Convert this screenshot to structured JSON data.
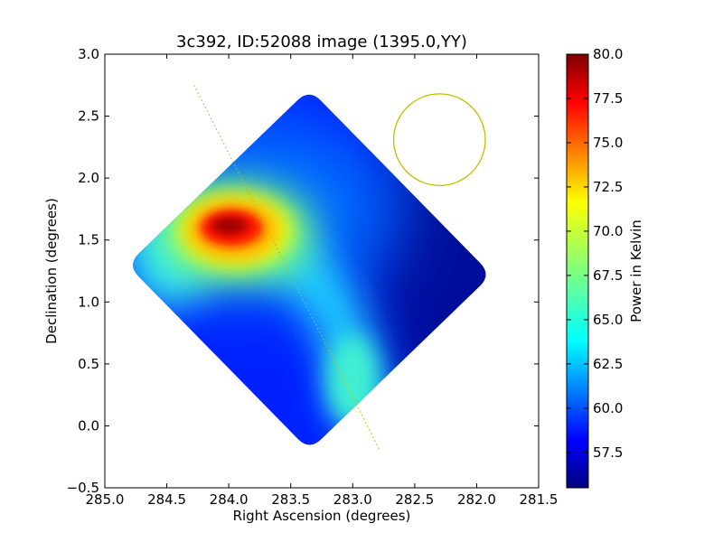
{
  "chart_data": {
    "type": "heatmap",
    "title": "3c392, ID:52088 image (1395.0,YY)",
    "xlabel": "Right Ascension (degrees)",
    "ylabel": "Declination (degrees)",
    "xlim": [
      285.0,
      281.5
    ],
    "ylim": [
      -0.5,
      3.0
    ],
    "xticks": [
      285.0,
      284.5,
      284.0,
      283.5,
      283.0,
      282.5,
      282.0,
      281.5
    ],
    "xtick_labels": [
      "285.0",
      "284.5",
      "284.0",
      "283.5",
      "283.0",
      "282.5",
      "282.0",
      "281.5"
    ],
    "yticks": [
      3.0,
      2.5,
      2.0,
      1.5,
      1.0,
      0.5,
      0.0,
      -0.5
    ],
    "ytick_labels": [
      "3.0",
      "2.5",
      "2.0",
      "1.5",
      "1.0",
      "0.5",
      "0.0",
      "−0.5"
    ],
    "colorbar": {
      "label": "Power in Kelvin",
      "range": [
        55.5,
        80.0
      ],
      "ticks": [
        80.0,
        77.5,
        75.0,
        72.5,
        70.0,
        67.5,
        65.0,
        62.5,
        60.0,
        57.5
      ],
      "tick_labels": [
        "80.0",
        "77.5",
        "75.0",
        "72.5",
        "70.0",
        "67.5",
        "65.0",
        "62.5",
        "60.0",
        "57.5"
      ],
      "colormap": "jet"
    },
    "map_footprint": {
      "shape": "diamond",
      "corners_ra_dec": [
        [
          283.35,
          2.72
        ],
        [
          281.88,
          1.22
        ],
        [
          283.35,
          -0.2
        ],
        [
          284.82,
          1.3
        ]
      ]
    },
    "emission_peak": {
      "ra": 283.95,
      "dec": 1.6,
      "value_k": 80.0
    },
    "secondary_ridge": [
      [
        284.3,
        1.6
      ],
      [
        283.55,
        1.4
      ],
      [
        283.2,
        1.05
      ],
      [
        283.0,
        0.55
      ],
      [
        282.95,
        0.15
      ]
    ],
    "beam_circle": {
      "ra": 282.3,
      "dec": 2.31,
      "radius_deg": 0.37,
      "color": "#bfbf00"
    },
    "galactic_plane_line": {
      "points": [
        [
          284.28,
          2.75
        ],
        [
          282.78,
          -0.2
        ]
      ],
      "color": "#bfbf00",
      "style": "dotted"
    },
    "grid": false
  }
}
